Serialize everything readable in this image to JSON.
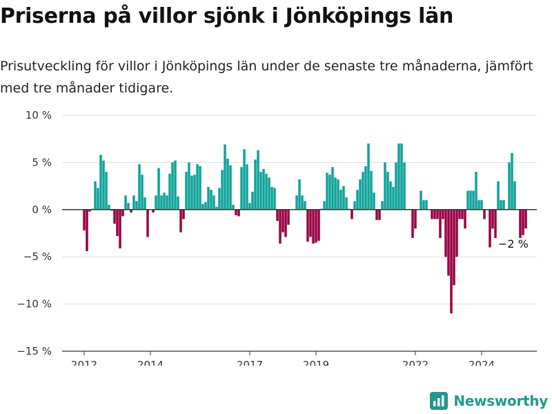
{
  "title": "Priserna på villor sjönk i Jönköpings län",
  "subtitle": "Prisutveckling för villor i Jönköpings län under de senaste tre månaderna, jämfört med tre månader tidigare.",
  "brand": {
    "name": "Newsworthy",
    "icon": "bar-chart-logo-icon"
  },
  "colors": {
    "positive": "#0fa39a",
    "negative": "#990044",
    "grid": "#dddddd",
    "baseline": "#333333"
  },
  "chart_data": {
    "type": "bar",
    "title": "Priserna på villor sjönk i Jönköpings län",
    "ylabel": "",
    "xlabel": "",
    "ylim": [
      -15,
      10
    ],
    "yticks": [
      {
        "value": 10,
        "label": "10 %"
      },
      {
        "value": 5,
        "label": "5 %"
      },
      {
        "value": 0,
        "label": "0 %"
      },
      {
        "value": -5,
        "label": "−5 %"
      },
      {
        "value": -10,
        "label": "−10 %"
      },
      {
        "value": -15,
        "label": "−15 %"
      }
    ],
    "xticks": [
      {
        "value": "2012-01",
        "label": "2012"
      },
      {
        "value": "2014-01",
        "label": "2014"
      },
      {
        "value": "2017-01",
        "label": "2017"
      },
      {
        "value": "2019-01",
        "label": "2019"
      },
      {
        "value": "2022-01",
        "label": "2022"
      },
      {
        "value": "2024-01",
        "label": "2024"
      }
    ],
    "grid": true,
    "annotation": {
      "x": "2024-12",
      "label": "−2 %"
    },
    "series": [
      {
        "start": "2012-01",
        "frequency": "monthly",
        "values": [
          -2.2,
          -4.4,
          -0.2,
          0.1,
          3,
          2.3,
          5.8,
          5.2,
          4,
          0.5,
          -0.1,
          -1.5,
          -2.8,
          -4.1,
          -0.7,
          1.5,
          0.7,
          -0.3,
          1.5,
          0.9,
          4.8,
          3.7,
          1.3,
          -2.9,
          0,
          -0.3,
          1.5,
          4.4,
          1.5,
          1.8,
          1.5,
          3.8,
          5,
          5.2,
          1.4,
          -2.4,
          -1,
          4,
          5,
          3.6,
          3.7,
          4.8,
          4.6,
          0.6,
          0.8,
          2.4,
          2.1,
          1.5,
          0.3,
          2.3,
          4.2,
          6.9,
          5.4,
          4.7,
          0.5,
          -0.6,
          -0.7,
          4.5,
          6.4,
          4.8,
          0.7,
          1.9,
          5.3,
          6.3,
          4,
          4.3,
          3.8,
          3.4,
          2.4,
          2.3,
          -1.2,
          -3.6,
          -2.4,
          -2.9,
          -1.6,
          0,
          0,
          1.5,
          3.2,
          1.5,
          0.9,
          -3.4,
          -2.9,
          -3.6,
          -3.5,
          -3.3,
          0.1,
          0.9,
          3.9,
          3.7,
          4.5,
          3.4,
          3.2,
          2.1,
          2.5,
          1.3,
          0.1,
          -1,
          0.9,
          2.1,
          3.2,
          4,
          4.6,
          7,
          4.1,
          1.8,
          -1.1,
          -1.1,
          0.9,
          5,
          4,
          3,
          2.4,
          5,
          7,
          7,
          5,
          0,
          0,
          -3,
          -2,
          0,
          2,
          1,
          1,
          0,
          -1,
          -1,
          -1,
          -3,
          -1,
          -5,
          -7,
          -11,
          -8,
          -5,
          -1,
          -1,
          -2,
          2,
          2,
          2,
          4,
          1,
          1,
          -1,
          0,
          -4,
          -2,
          -3,
          3,
          1,
          1,
          0,
          5,
          6,
          3,
          0,
          -3,
          -2.7,
          -2
        ]
      }
    ]
  }
}
